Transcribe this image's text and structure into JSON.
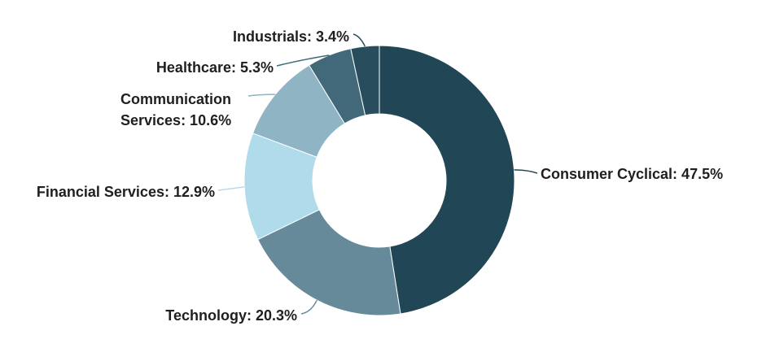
{
  "chart_data": {
    "type": "pie",
    "subtype": "donut",
    "title": "",
    "series": [
      {
        "name": "Sector Allocation",
        "values": [
          47.5,
          20.3,
          12.9,
          10.6,
          5.3,
          3.4
        ]
      }
    ],
    "categories": [
      "Consumer Cyclical",
      "Technology",
      "Financial Services",
      "Communication Services",
      "Healthcare",
      "Industrials"
    ],
    "labels": [
      [
        "Consumer Cyclical: 47.5%"
      ],
      [
        "Technology: 20.3%"
      ],
      [
        "Financial Services: 12.9%"
      ],
      [
        "Communication",
        "Services: 10.6%"
      ],
      [
        "Healthcare: 5.3%"
      ],
      [
        "Industrials: 3.4%"
      ]
    ],
    "colors": [
      "#214756",
      "#678a9a",
      "#b0dbeb",
      "#8fb4c3",
      "#42697a",
      "#284d5d"
    ],
    "legend": "none",
    "label_placement": "outside with connectors"
  }
}
